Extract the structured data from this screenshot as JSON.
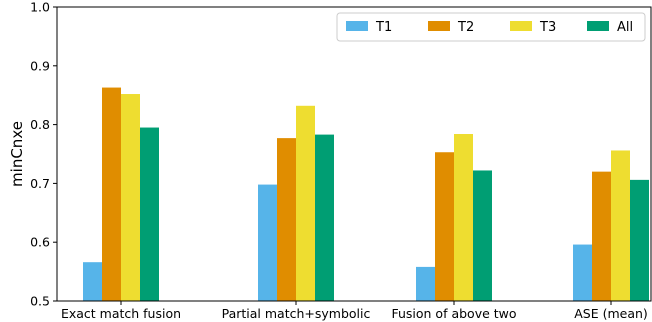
{
  "chart_data": {
    "type": "bar",
    "title": "",
    "xlabel": "",
    "ylabel": "minCnxe",
    "ylim": [
      0.5,
      1.0
    ],
    "yticks": [
      "0.5",
      "0.6",
      "0.7",
      "0.8",
      "0.9",
      "1.0"
    ],
    "categories": [
      "Exact match fusion",
      "Partial match+symbolic",
      "Fusion of above two",
      "ASE (mean)"
    ],
    "series": [
      {
        "name": "T1",
        "color": "#56B4E9",
        "values": [
          0.566,
          0.698,
          0.558,
          0.596
        ]
      },
      {
        "name": "T2",
        "color": "#E08D00",
        "values": [
          0.863,
          0.777,
          0.753,
          0.72
        ]
      },
      {
        "name": "T3",
        "color": "#EEDD30",
        "values": [
          0.852,
          0.832,
          0.784,
          0.756
        ]
      },
      {
        "name": "All",
        "color": "#009E73",
        "values": [
          0.795,
          0.783,
          0.722,
          0.706
        ]
      }
    ],
    "legend_position": "top-right",
    "grid": false
  }
}
